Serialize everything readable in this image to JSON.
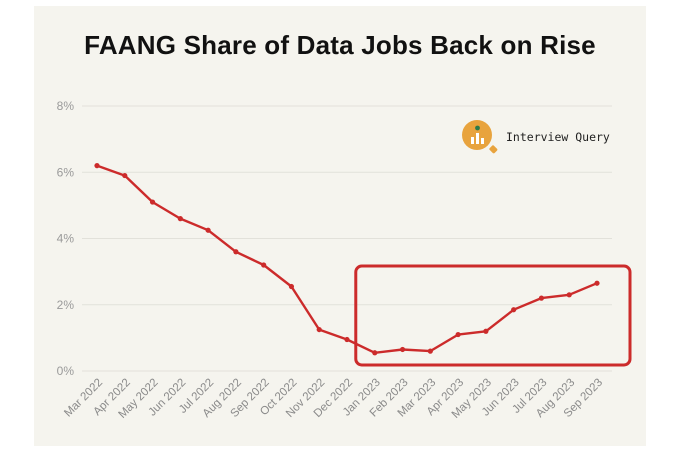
{
  "title": "FAANG Share of Data Jobs Back on Rise",
  "brand": {
    "name": "Interview Query",
    "logo_icon": "magnifier-bar-chart-icon",
    "logo_color": "#e8a33d",
    "logo_dot_color": "#2d7a4a"
  },
  "colors": {
    "line": "#cc2b2b",
    "highlight_box": "#cc2b2b",
    "background": "#f5f4ee"
  },
  "chart_data": {
    "type": "line",
    "title": "FAANG Share of Data Jobs Back on Rise",
    "xlabel": "",
    "ylabel": "",
    "categories": [
      "Mar 2022",
      "Apr 2022",
      "May 2022",
      "Jun 2022",
      "Jul 2022",
      "Aug 2022",
      "Sep 2022",
      "Oct 2022",
      "Nov 2022",
      "Dec 2022",
      "Jan 2023",
      "Feb 2023",
      "Mar 2023",
      "Apr 2023",
      "May 2023",
      "Jun 2023",
      "Jul 2023",
      "Aug 2023",
      "Sep 2023"
    ],
    "series": [
      {
        "values": [
          6.2,
          5.9,
          5.1,
          4.6,
          4.25,
          3.6,
          3.2,
          2.55,
          1.25,
          0.95,
          0.55,
          0.65,
          0.6,
          1.1,
          1.2,
          1.85,
          2.2,
          2.3,
          2.65
        ],
        "color": "#cc2b2b"
      }
    ],
    "ylim": [
      0,
      8
    ],
    "yticks": [
      0,
      2,
      4,
      6,
      8
    ],
    "ytick_labels": [
      "0%",
      "2%",
      "4%",
      "6%",
      "8%"
    ],
    "grid": true,
    "legend": "none",
    "annotations": [
      {
        "type": "highlight-box",
        "from_category": "Jan 2023",
        "to_category": "Sep 2023",
        "color": "#cc2b2b"
      }
    ]
  }
}
